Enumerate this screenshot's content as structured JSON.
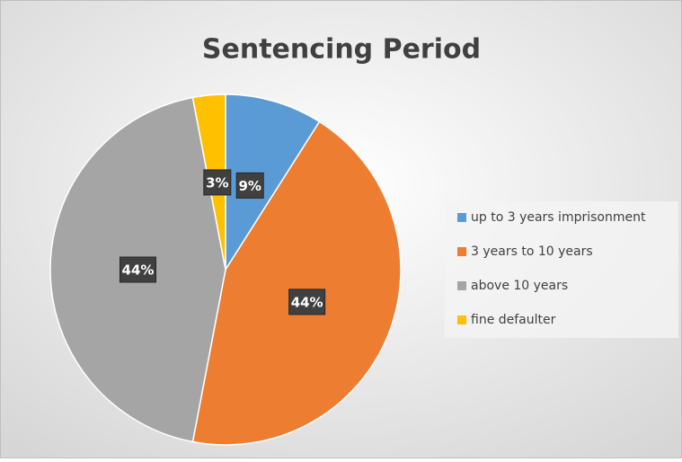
{
  "chart_data": {
    "type": "pie",
    "title": "Sentencing Period",
    "categories": [
      "up to 3 years imprisonment",
      "3 years to 10 years",
      "above 10 years",
      "fine defaulter"
    ],
    "values": [
      9,
      44,
      44,
      3
    ],
    "value_labels": [
      "9%",
      "44%",
      "44%",
      "3%"
    ],
    "colors": [
      "#5b9bd5",
      "#ed7d31",
      "#a5a5a5",
      "#ffc000"
    ],
    "legend": "right"
  }
}
